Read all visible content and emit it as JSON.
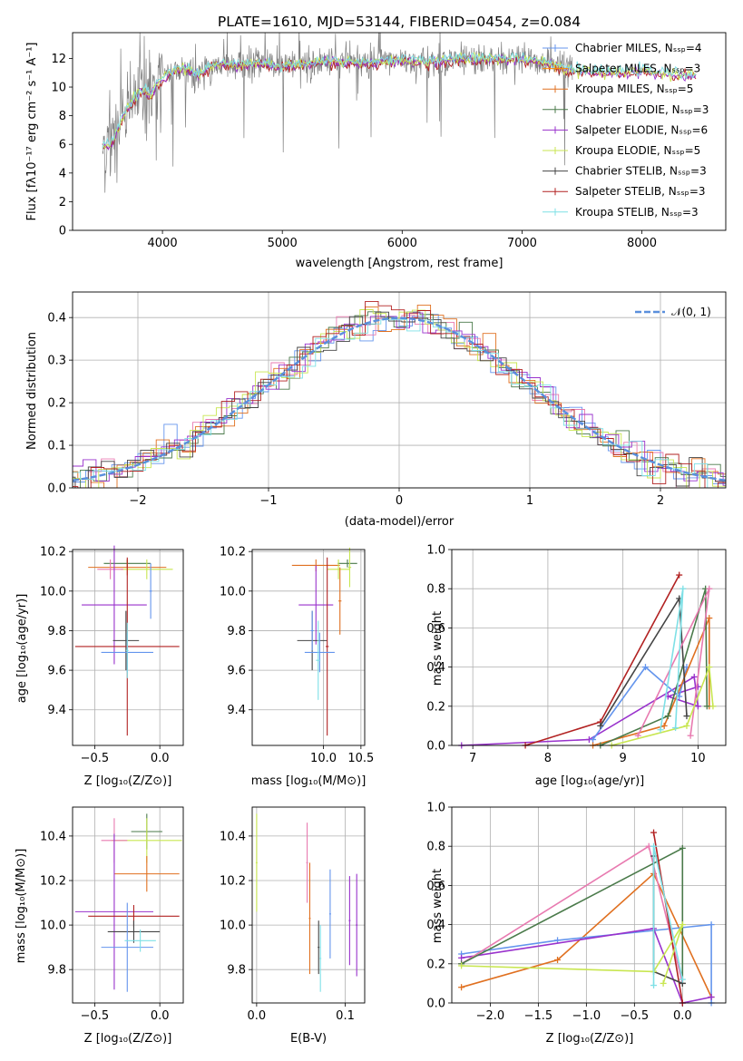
{
  "title": "PLATE=1610, MJD=53144, FIBERID=0454, z=0.084",
  "colors": {
    "Chabrier MILES": "#6495ed",
    "Salpeter MILES": "#ff8c00",
    "Kroupa MILES": "#e07020",
    "Chabrier ELODIE": "#4a7a4a",
    "Salpeter ELODIE": "#9932cc",
    "Kroupa ELODIE": "#c8e650",
    "Chabrier STELIB": "#444444",
    "Salpeter STELIB": "#b22222",
    "Kroupa STELIB": "#7ee0e6",
    "data": "#808080",
    "pink": "#e87ab0",
    "normal": "#5a8fdc"
  },
  "chart_data": [
    {
      "type": "line",
      "title": "PLATE=1610, MJD=53144, FIBERID=0454, z=0.084",
      "xlabel": "wavelength [Angstrom, rest frame]",
      "ylabel": "Flux [fλ10⁻¹⁷ erg cm⁻² s⁻¹ A⁻¹]",
      "xlim": [
        3250,
        8700
      ],
      "ylim": [
        0,
        13.8
      ],
      "xticks": [
        "4000",
        "5000",
        "6000",
        "7000",
        "8000"
      ],
      "yticks": [
        "0",
        "2",
        "4",
        "6",
        "8",
        "10",
        "12"
      ],
      "legend_position": "top-right",
      "legend": [
        "Chabrier MILES, Nₛₛₚ=4",
        "Salpeter MILES, Nₛₛₚ=3",
        "Kroupa MILES, Nₛₛₚ=5",
        "Chabrier ELODIE, Nₛₛₚ=3",
        "Salpeter ELODIE, Nₛₛₚ=6",
        "Kroupa ELODIE, Nₛₛₚ=5",
        "Chabrier STELIB, Nₛₛₚ=3",
        "Salpeter STELIB, Nₛₛₚ=3",
        "Kroupa STELIB, Nₛₛₚ=3"
      ],
      "model_x": [
        3500,
        3550,
        3600,
        3650,
        3700,
        3750,
        3800,
        3850,
        3900,
        3950,
        4000,
        4100,
        4200,
        4300,
        4400,
        4500,
        4600,
        4800,
        5000,
        5200,
        5400,
        5600,
        5800,
        6000,
        6200,
        6400,
        6600,
        6800,
        7000,
        7200,
        7400,
        7600,
        7800,
        8000,
        8200,
        8400
      ],
      "model_y": [
        6.0,
        5.8,
        6.5,
        7.5,
        8.5,
        9.0,
        9.5,
        9.8,
        9.3,
        10.2,
        10.6,
        11.2,
        11.3,
        10.8,
        11.4,
        11.6,
        11.5,
        11.7,
        11.4,
        11.6,
        11.8,
        11.7,
        11.7,
        11.9,
        11.7,
        11.9,
        11.9,
        12.0,
        11.9,
        11.7,
        11.2,
        11.0,
        11.0,
        11.1,
        10.9,
        10.8
      ]
    },
    {
      "type": "line",
      "xlabel": "(data-model)/error",
      "ylabel": "Normed distribution",
      "xlim": [
        -2.5,
        2.5
      ],
      "ylim": [
        0,
        0.46
      ],
      "xticks": [
        "−2",
        "−1",
        "0",
        "1",
        "2"
      ],
      "yticks": [
        "0.0",
        "0.1",
        "0.2",
        "0.3",
        "0.4"
      ],
      "legend": [
        "𝒩(0, 1)"
      ],
      "legend_position": "top-right"
    },
    {
      "type": "scatter",
      "xlabel": "Z [log₁₀(Z/Z⊙)]",
      "ylabel": "age  [log₁₀(age/yr)]",
      "xlim": [
        -0.67,
        0.18
      ],
      "ylim": [
        9.22,
        10.21
      ],
      "xticks": [
        "−0.5",
        "0.0"
      ],
      "yticks": [
        "9.4",
        "9.6",
        "9.8",
        "10.0",
        "10.2"
      ]
    },
    {
      "type": "scatter",
      "xlabel": "mass [log₁₀(M/M⊙)]",
      "xlim": [
        9.05,
        10.55
      ],
      "ylim": [
        9.22,
        10.21
      ],
      "xticks": [
        "10.0",
        "10.5"
      ],
      "yticks": [
        "9.4",
        "9.6",
        "9.8",
        "10.0",
        "10.2"
      ]
    },
    {
      "type": "line",
      "xlabel": "age  [log₁₀(age/yr)]",
      "ylabel": "mass weight",
      "xlim": [
        6.72,
        10.37
      ],
      "ylim": [
        0,
        1.0
      ],
      "xticks": [
        "7",
        "8",
        "9",
        "10"
      ],
      "yticks": [
        "0.0",
        "0.2",
        "0.4",
        "0.6",
        "0.8",
        "1.0"
      ]
    },
    {
      "type": "scatter",
      "xlabel": "Z [log₁₀(Z/Z⊙)]",
      "ylabel": "mass [log₁₀(M/M⊙)]",
      "xlim": [
        -0.67,
        0.18
      ],
      "ylim": [
        9.65,
        10.53
      ],
      "xticks": [
        "−0.5",
        "0.0"
      ],
      "yticks": [
        "9.8",
        "10.0",
        "10.2",
        "10.4"
      ]
    },
    {
      "type": "scatter",
      "xlabel": "E(B-V)",
      "xlim": [
        -0.005,
        0.122
      ],
      "ylim": [
        9.65,
        10.53
      ],
      "xticks": [
        "0.0",
        "0.1"
      ],
      "yticks": [
        "9.8",
        "10.0",
        "10.2",
        "10.4"
      ]
    },
    {
      "type": "line",
      "xlabel": "Z [log₁₀(Z/Z⊙)]",
      "ylabel": "mass weight",
      "xlim": [
        -2.4,
        0.45
      ],
      "ylim": [
        0,
        1.0
      ],
      "xticks": [
        "−2.0",
        "−1.5",
        "−1.0",
        "−0.5",
        "0.0"
      ],
      "yticks": [
        "0.0",
        "0.2",
        "0.4",
        "0.6",
        "0.8",
        "1.0"
      ]
    }
  ]
}
